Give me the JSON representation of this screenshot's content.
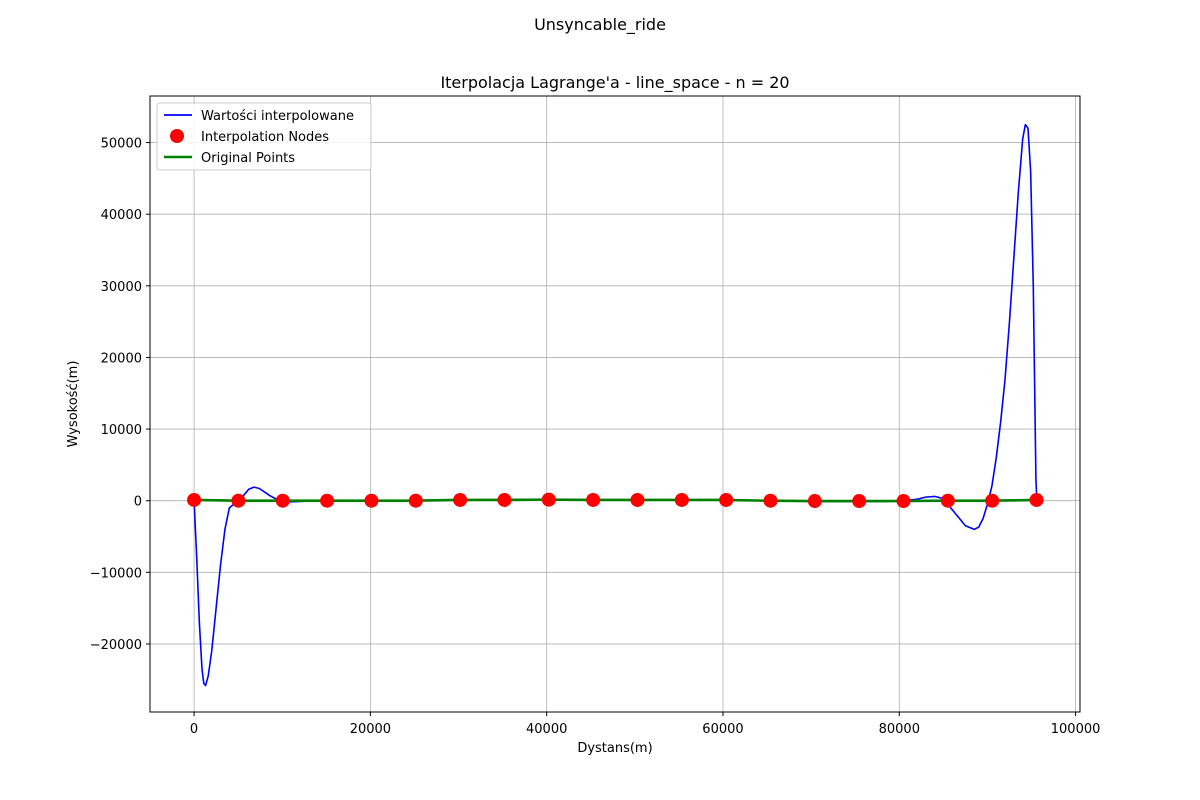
{
  "chart_data": {
    "type": "line",
    "suptitle": "Unsyncable_ride",
    "title": "Iterpolacja Lagrange'a - line_space - n = 20",
    "xlabel": "Dystans(m)",
    "ylabel": "Wysokość(m)",
    "xlim": [
      -5000,
      100500
    ],
    "ylim": [
      -29500,
      56500
    ],
    "xticks": [
      0,
      20000,
      40000,
      60000,
      80000,
      100000
    ],
    "yticks": [
      -20000,
      -10000,
      0,
      10000,
      20000,
      30000,
      40000,
      50000
    ],
    "xtick_labels": [
      "0",
      "20000",
      "40000",
      "60000",
      "80000",
      "100000"
    ],
    "ytick_labels": [
      "−20000",
      "−10000",
      "0",
      "10000",
      "20000",
      "30000",
      "40000",
      "50000"
    ],
    "grid": true,
    "legend_position": "upper-left",
    "series": [
      {
        "name": "Wartości interpolowane",
        "kind": "line",
        "color": "#0000ff",
        "x": [
          0,
          300,
          600,
          900,
          1100,
          1300,
          1600,
          2000,
          2500,
          3000,
          3500,
          4000,
          4500,
          5000,
          5600,
          6200,
          6800,
          7400,
          8000,
          8600,
          9200,
          9800,
          10200,
          11000,
          12000,
          13000,
          14000,
          15200,
          20000,
          25000,
          30000,
          35000,
          40000,
          45000,
          50000,
          55000,
          60000,
          65000,
          70000,
          75000,
          78000,
          80500,
          82000,
          83000,
          84000,
          85000,
          85500,
          86500,
          87500,
          88500,
          89000,
          89500,
          90000,
          90500,
          91000,
          91500,
          92000,
          92500,
          93000,
          93500,
          94000,
          94300,
          94600,
          94900,
          95200,
          95400,
          95500,
          95600
        ],
        "y": [
          0,
          -8000,
          -17000,
          -23500,
          -25500,
          -25800,
          -24500,
          -21000,
          -15000,
          -9000,
          -4000,
          -1000,
          -500,
          -100,
          700,
          1600,
          1900,
          1700,
          1200,
          700,
          300,
          50,
          -100,
          -150,
          -100,
          -50,
          0,
          0,
          50,
          50,
          100,
          150,
          200,
          150,
          100,
          100,
          100,
          0,
          -100,
          -100,
          -100,
          0,
          200,
          500,
          600,
          300,
          -500,
          -2000,
          -3500,
          -4000,
          -3700,
          -2500,
          -500,
          2000,
          6000,
          11000,
          17000,
          25000,
          34000,
          43000,
          50500,
          52500,
          52000,
          46000,
          30000,
          12000,
          3000,
          200
        ]
      },
      {
        "name": "Interpolation Nodes",
        "kind": "scatter",
        "color": "#ff0000",
        "x": [
          0,
          5030,
          10060,
          15090,
          20120,
          25150,
          30180,
          35210,
          40240,
          45270,
          50300,
          55330,
          60360,
          65390,
          70420,
          75450,
          80480,
          85510,
          90540,
          95570
        ],
        "y": [
          100,
          0,
          0,
          0,
          0,
          0,
          100,
          100,
          150,
          100,
          100,
          100,
          100,
          0,
          -50,
          -50,
          -50,
          0,
          0,
          100
        ]
      },
      {
        "name": "Original Points",
        "kind": "line",
        "color": "#008000",
        "x": [
          0,
          5000,
          10000,
          15000,
          20000,
          25000,
          30000,
          35000,
          40000,
          45000,
          50000,
          55000,
          60000,
          65000,
          70000,
          75000,
          80000,
          85000,
          90000,
          95570
        ],
        "y": [
          100,
          0,
          0,
          0,
          0,
          0,
          100,
          100,
          150,
          100,
          100,
          100,
          100,
          0,
          -50,
          -50,
          -50,
          0,
          0,
          100
        ]
      }
    ]
  }
}
